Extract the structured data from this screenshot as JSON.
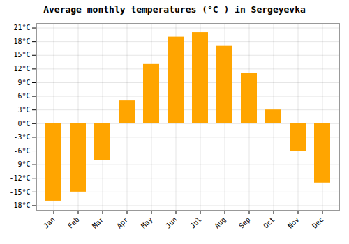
{
  "chart_data": {
    "type": "bar",
    "title": "Average monthly temperatures (°C ) in Sergeyevka",
    "categories": [
      "Jan",
      "Feb",
      "Mar",
      "Apr",
      "May",
      "Jun",
      "Jul",
      "Aug",
      "Sep",
      "Oct",
      "Nov",
      "Dec"
    ],
    "values": [
      -17,
      -15,
      -8,
      5,
      13,
      19,
      20,
      17,
      11,
      3,
      -6,
      -13
    ],
    "color": "#FFA500",
    "ylim": [
      -19,
      22
    ],
    "yticks": [
      {
        "value": -18,
        "label": "-18°C"
      },
      {
        "value": -15,
        "label": "-15°C"
      },
      {
        "value": -12,
        "label": "-12°C"
      },
      {
        "value": -9,
        "label": "-9°C"
      },
      {
        "value": -6,
        "label": "-6°C"
      },
      {
        "value": -3,
        "label": "-3°C"
      },
      {
        "value": 0,
        "label": "0°C"
      },
      {
        "value": 3,
        "label": "3°C"
      },
      {
        "value": 6,
        "label": "6°C"
      },
      {
        "value": 9,
        "label": "9°C"
      },
      {
        "value": 12,
        "label": "12°C"
      },
      {
        "value": 15,
        "label": "15°C"
      },
      {
        "value": 18,
        "label": "18°C"
      },
      {
        "value": 21,
        "label": "21°C"
      }
    ],
    "grid": true
  }
}
